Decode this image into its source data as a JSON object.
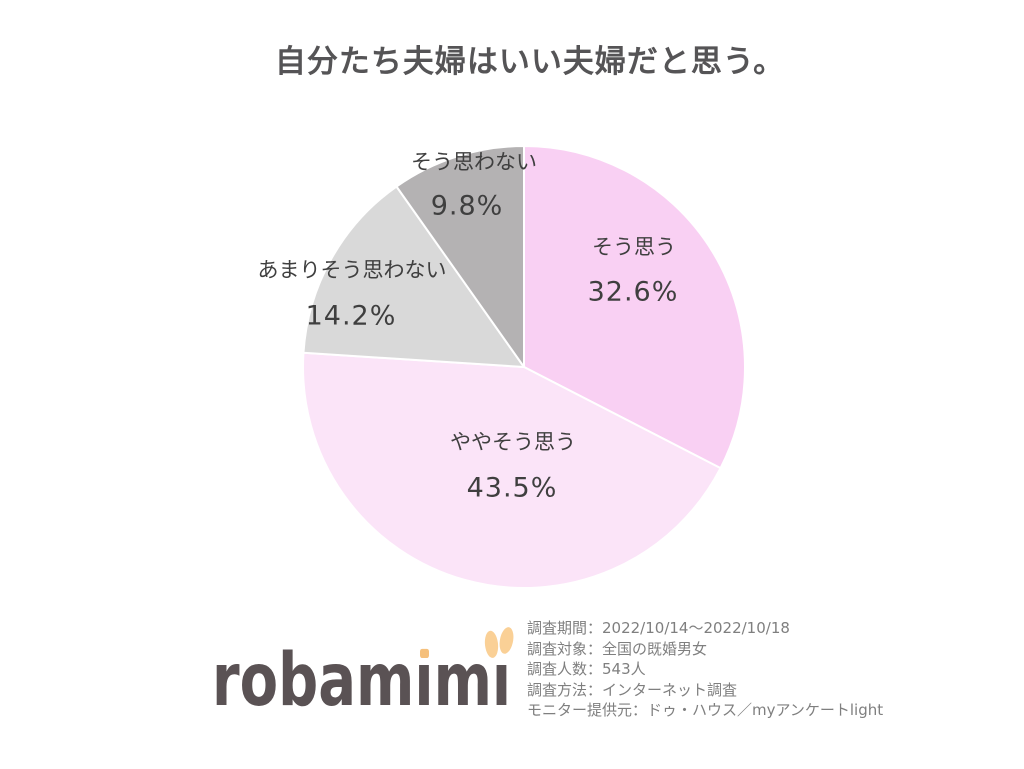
{
  "chart_data": {
    "type": "pie",
    "title": "自分たち夫婦はいい夫婦だと思う。",
    "unit": "%",
    "start_angle_deg": 0,
    "direction": "clockwise",
    "slice_border_color": "#ffffff",
    "label_color": "#3f3f3f",
    "slices": [
      {
        "label": "そう思う",
        "value": 32.6,
        "pct_label": "32.6%",
        "color": "#f9d0f3"
      },
      {
        "label": "ややそう思う",
        "value": 43.5,
        "pct_label": "43.5%",
        "color": "#fbe4f8"
      },
      {
        "label": "あまりそう思わない",
        "value": 14.2,
        "pct_label": "14.2%",
        "color": "#d9d9d9"
      },
      {
        "label": "そう思わない",
        "value": 9.8,
        "pct_label": "9.8%",
        "color": "#b4b2b3"
      }
    ]
  },
  "footer": {
    "logo_text": "robamimi",
    "logo_color": "#5a5254",
    "logo_accent_color": "#fad096",
    "logo_dot_color": "#f5c07c",
    "survey_lines": [
      "調査期間：2022/10/14～2022/10/18",
      "調査対象：全国の既婚男女",
      "調査人数：543人",
      "調査方法：インターネット調査",
      "モニター提供元：ドゥ・ハウス／myアンケートlight"
    ]
  }
}
